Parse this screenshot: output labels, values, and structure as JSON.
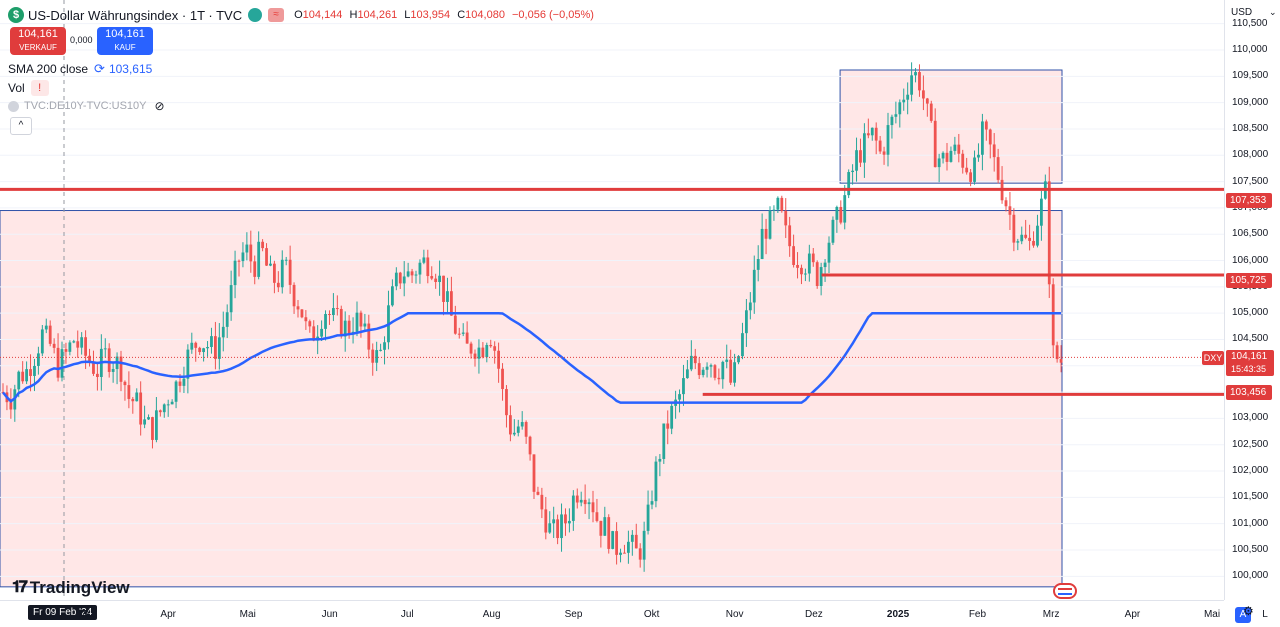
{
  "legend": {
    "symbol_letter": "$",
    "title": "US-Dollar Währungsindex · 1T · TVC",
    "ohlc": [
      {
        "k": "O",
        "v": "104,144"
      },
      {
        "k": "H",
        "v": "104,261"
      },
      {
        "k": "L",
        "v": "103,954"
      },
      {
        "k": "C",
        "v": "104,080"
      }
    ],
    "change": "−0,056 (−0,05%)",
    "sell_price": "104,161",
    "sell_label": "VERKAUF",
    "spread": "0,000",
    "buy_price": "104,161",
    "buy_label": "KAUF",
    "sma_label": "SMA 200 close",
    "sma_value": "103,615",
    "vol_label": "Vol",
    "vol_warning": "!",
    "compare_label": "TVC:DE10Y-TVC:US10Y",
    "collapse": "^"
  },
  "price_axis": {
    "currency": "USD",
    "ticks": [
      "110,500",
      "110,000",
      "109,500",
      "109,000",
      "108,500",
      "108,000",
      "107,500",
      "107,000",
      "106,500",
      "106,000",
      "105,500",
      "105,000",
      "104,500",
      "104,000",
      "103,500",
      "103,000",
      "102,500",
      "102,000",
      "101,500",
      "101,000",
      "100,500",
      "100,000"
    ],
    "tags": [
      {
        "value": "107,353",
        "price": 107.353
      },
      {
        "value": "105,725",
        "price": 105.725
      },
      {
        "value": "103,456",
        "price": 103.456
      }
    ],
    "symbol_tag": "DXY",
    "last_price": "104,161",
    "countdown": "15:43:35"
  },
  "time_axis": {
    "cursor": "Fr 09 Feb '24",
    "labels": [
      "Mrz",
      "Apr",
      "Mai",
      "Jun",
      "Jul",
      "Aug",
      "Sep",
      "Okt",
      "Nov",
      "Dez",
      "2025",
      "Feb",
      "Mrz",
      "Apr",
      "Mai"
    ],
    "auto": "A",
    "log": "L"
  },
  "branding": {
    "name": "TradingView"
  },
  "colors": {
    "up": "#26a69a",
    "down": "#ef5350",
    "line": "#e03c3c",
    "sma": "#2962ff",
    "zone": "#ffe3e3",
    "box": "#2f52a8"
  },
  "chart_data": {
    "type": "candlestick",
    "series": [
      {
        "name": "US-Dollar Währungsindex"
      }
    ],
    "start": "2024-01-29",
    "end": "2025-03-06",
    "closes": [
      103.5,
      103.4,
      103.8,
      103.9,
      104.2,
      104.6,
      104.4,
      104.0,
      104.2,
      104.5,
      104.3,
      104.1,
      103.9,
      104.2,
      104.1,
      104.0,
      103.4,
      103.3,
      102.9,
      102.8,
      103.1,
      103.4,
      103.6,
      104.0,
      104.3,
      104.5,
      104.4,
      104.3,
      104.7,
      105.3,
      106.0,
      106.2,
      105.9,
      106.2,
      105.7,
      105.6,
      105.9,
      105.4,
      105.1,
      104.5,
      104.7,
      105.1,
      104.9,
      104.8,
      104.7,
      104.9,
      104.6,
      104.3,
      104.1,
      104.9,
      105.5,
      105.8,
      105.7,
      105.9,
      106.0,
      105.9,
      105.5,
      105.0,
      104.6,
      104.3,
      104.4,
      104.3,
      104.7,
      104.2,
      103.2,
      102.7,
      102.9,
      102.4,
      101.5,
      101.2,
      100.8,
      100.9,
      101.1,
      101.6,
      101.7,
      101.5,
      101.0,
      100.9,
      100.5,
      100.7,
      100.6,
      100.4,
      100.8,
      101.8,
      102.5,
      103.0,
      103.3,
      103.7,
      104.1,
      104.0,
      104.2,
      103.9,
      104.1,
      103.6,
      104.3,
      105.0,
      105.8,
      106.6,
      106.7,
      107.0,
      106.4,
      106.1,
      106.0,
      105.9,
      105.7,
      106.3,
      106.6,
      107.0,
      107.5,
      108.0,
      108.2,
      108.4,
      108.0,
      108.5,
      108.8,
      109.2,
      109.6,
      109.4,
      108.7,
      108.0,
      107.9,
      108.1,
      108.0,
      107.8,
      107.7,
      108.4,
      108.1,
      107.6,
      107.1,
      106.6,
      106.4,
      106.3,
      106.8,
      107.3,
      104.2,
      104.1
    ],
    "sma200_range": [
      103.3,
      105.0
    ],
    "zones": [
      {
        "from": "2024-01-29",
        "to": "2025-03-06",
        "low": 99.8,
        "high": 106.95
      },
      {
        "from": "2024-12-12",
        "to": "2025-03-06",
        "low": 107.47,
        "high": 109.62
      }
    ],
    "levels": [
      107.353,
      105.725,
      103.456
    ],
    "ylim": [
      99.55,
      110.95
    ]
  }
}
